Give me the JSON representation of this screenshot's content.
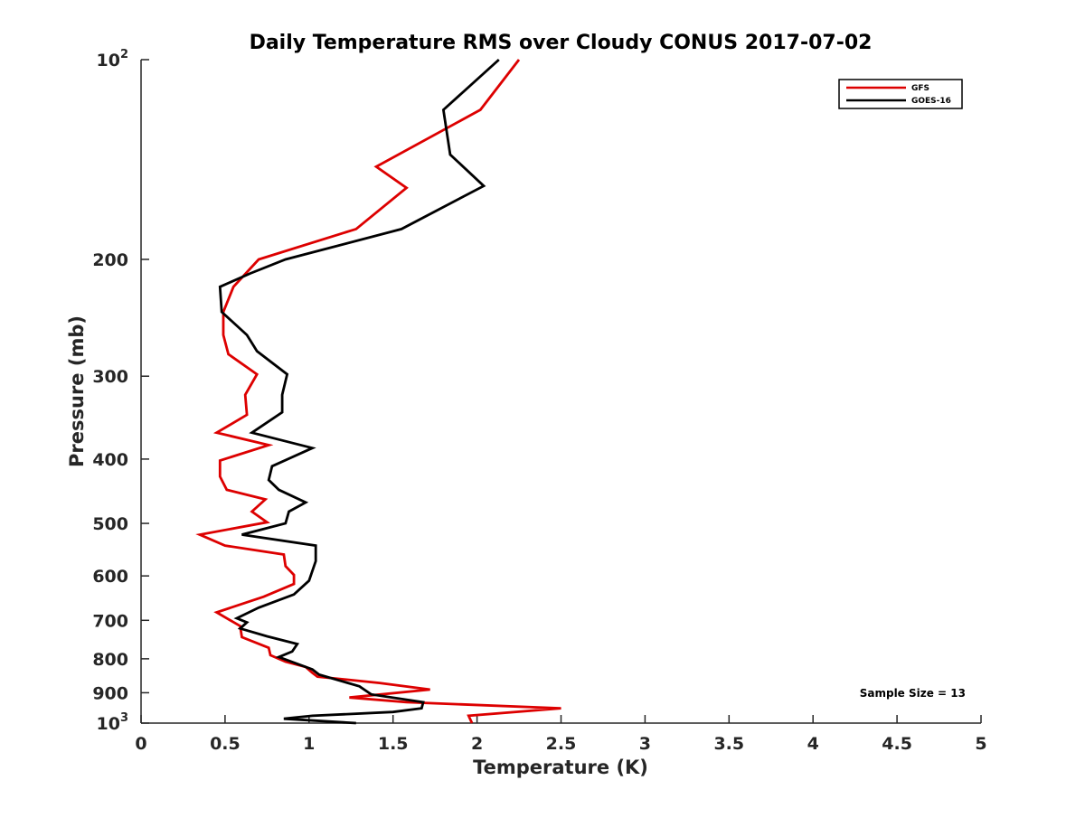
{
  "chart_data": {
    "type": "line",
    "title": "Daily Temperature RMS over Cloudy CONUS 2017-07-02",
    "xlabel": "Temperature (K)",
    "ylabel": "Pressure (mb)",
    "xlim": [
      0,
      5
    ],
    "ylim": [
      100,
      1000
    ],
    "y_scale": "log",
    "y_reversed": true,
    "grid": false,
    "legend_position": "top-right",
    "x_ticks": [
      0,
      0.5,
      1,
      1.5,
      2,
      2.5,
      3,
      3.5,
      4,
      4.5,
      5
    ],
    "x_tick_labels": [
      "0",
      "0.5",
      "1",
      "1.5",
      "2",
      "2.5",
      "3",
      "3.5",
      "4",
      "4.5",
      "5"
    ],
    "y_ticks": [
      100,
      200,
      300,
      400,
      500,
      600,
      700,
      800,
      900,
      1000
    ],
    "y_tick_labels": [
      {
        "base": "10",
        "exp": "2"
      },
      {
        "base": "200",
        "exp": ""
      },
      {
        "base": "300",
        "exp": ""
      },
      {
        "base": "400",
        "exp": ""
      },
      {
        "base": "500",
        "exp": ""
      },
      {
        "base": "600",
        "exp": ""
      },
      {
        "base": "700",
        "exp": ""
      },
      {
        "base": "800",
        "exp": ""
      },
      {
        "base": "900",
        "exp": ""
      },
      {
        "base": "10",
        "exp": "3"
      }
    ],
    "annotation": "Sample Size = 13",
    "series": [
      {
        "name": "GFS",
        "color": "#dd0000",
        "points": [
          [
            2.25,
            100
          ],
          [
            2.02,
            119
          ],
          [
            1.4,
            145
          ],
          [
            1.58,
            156
          ],
          [
            1.28,
            180
          ],
          [
            0.7,
            200
          ],
          [
            0.55,
            220
          ],
          [
            0.49,
            240
          ],
          [
            0.49,
            260
          ],
          [
            0.52,
            278
          ],
          [
            0.69,
            298
          ],
          [
            0.62,
            320
          ],
          [
            0.63,
            343
          ],
          [
            0.45,
            365
          ],
          [
            0.76,
            381
          ],
          [
            0.47,
            402
          ],
          [
            0.47,
            425
          ],
          [
            0.51,
            445
          ],
          [
            0.74,
            460
          ],
          [
            0.66,
            480
          ],
          [
            0.75,
            498
          ],
          [
            0.35,
            520
          ],
          [
            0.5,
            540
          ],
          [
            0.85,
            557
          ],
          [
            0.86,
            580
          ],
          [
            0.91,
            598
          ],
          [
            0.91,
            617
          ],
          [
            0.73,
            645
          ],
          [
            0.45,
            681
          ],
          [
            0.59,
            714
          ],
          [
            0.6,
            742
          ],
          [
            0.76,
            770
          ],
          [
            0.77,
            790
          ],
          [
            0.86,
            808
          ],
          [
            0.98,
            823
          ],
          [
            1.02,
            840
          ],
          [
            1.05,
            851
          ],
          [
            1.42,
            870
          ],
          [
            1.72,
            890
          ],
          [
            1.24,
            915
          ],
          [
            1.58,
            930
          ],
          [
            2.5,
            950
          ],
          [
            1.95,
            975
          ],
          [
            1.97,
            1000
          ]
        ]
      },
      {
        "name": "GOES-16",
        "color": "#000000",
        "points": [
          [
            2.13,
            100
          ],
          [
            1.8,
            119
          ],
          [
            1.84,
            139
          ],
          [
            2.04,
            155
          ],
          [
            1.55,
            180
          ],
          [
            0.86,
            200
          ],
          [
            0.65,
            210
          ],
          [
            0.47,
            220
          ],
          [
            0.48,
            240
          ],
          [
            0.63,
            260
          ],
          [
            0.69,
            275
          ],
          [
            0.87,
            298
          ],
          [
            0.84,
            320
          ],
          [
            0.84,
            340
          ],
          [
            0.66,
            365
          ],
          [
            1.02,
            385
          ],
          [
            0.78,
            410
          ],
          [
            0.76,
            430
          ],
          [
            0.82,
            445
          ],
          [
            0.98,
            465
          ],
          [
            0.88,
            480
          ],
          [
            0.86,
            500
          ],
          [
            0.6,
            520
          ],
          [
            1.04,
            540
          ],
          [
            1.04,
            570
          ],
          [
            1.0,
            610
          ],
          [
            0.91,
            640
          ],
          [
            0.7,
            670
          ],
          [
            0.57,
            695
          ],
          [
            0.63,
            705
          ],
          [
            0.59,
            720
          ],
          [
            0.75,
            740
          ],
          [
            0.93,
            760
          ],
          [
            0.9,
            780
          ],
          [
            0.82,
            795
          ],
          [
            1.02,
            830
          ],
          [
            1.06,
            845
          ],
          [
            1.3,
            880
          ],
          [
            1.37,
            905
          ],
          [
            1.68,
            930
          ],
          [
            1.67,
            950
          ],
          [
            1.5,
            962
          ],
          [
            1.02,
            975
          ],
          [
            0.85,
            985
          ],
          [
            1.28,
            1000
          ]
        ]
      }
    ]
  }
}
